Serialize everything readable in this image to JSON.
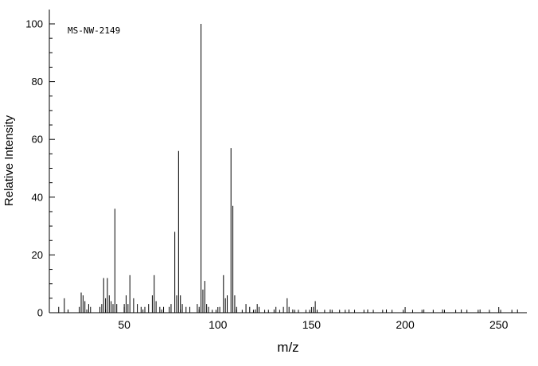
{
  "chart_data": {
    "type": "bar",
    "subtype": "mass-spectrum-stick-plot",
    "spectrum_id": "MS-NW-2149",
    "xlabel": "m/z",
    "ylabel": "Relative Intensity",
    "xlim": [
      10,
      265
    ],
    "ylim": [
      0,
      100
    ],
    "x_ticks_major": [
      50,
      100,
      150,
      200,
      250
    ],
    "y_ticks_major": [
      0,
      20,
      40,
      60,
      80,
      100
    ],
    "x_minor_step": 10,
    "y_minor_step": 5,
    "y_major_step": 20,
    "grid": false,
    "legend": "none",
    "line_color": "#000000",
    "background_color": "#ffffff",
    "peaks": [
      [
        15,
        2
      ],
      [
        18,
        5
      ],
      [
        26,
        2
      ],
      [
        27,
        7
      ],
      [
        28,
        6
      ],
      [
        29,
        4
      ],
      [
        31,
        3
      ],
      [
        32,
        2
      ],
      [
        37,
        2
      ],
      [
        38,
        3
      ],
      [
        39,
        12
      ],
      [
        40,
        5
      ],
      [
        41,
        12
      ],
      [
        42,
        6
      ],
      [
        43,
        4
      ],
      [
        44,
        3
      ],
      [
        45,
        36
      ],
      [
        46,
        3
      ],
      [
        50,
        3
      ],
      [
        51,
        6
      ],
      [
        52,
        3
      ],
      [
        53,
        13
      ],
      [
        55,
        5
      ],
      [
        57,
        3
      ],
      [
        59,
        2
      ],
      [
        61,
        2
      ],
      [
        63,
        3
      ],
      [
        65,
        6
      ],
      [
        66,
        13
      ],
      [
        67,
        4
      ],
      [
        69,
        2
      ],
      [
        71,
        2
      ],
      [
        74,
        2
      ],
      [
        75,
        3
      ],
      [
        77,
        28
      ],
      [
        78,
        6
      ],
      [
        79,
        56
      ],
      [
        80,
        6
      ],
      [
        81,
        3
      ],
      [
        83,
        2
      ],
      [
        85,
        2
      ],
      [
        89,
        3
      ],
      [
        90,
        2
      ],
      [
        91,
        100
      ],
      [
        92,
        8
      ],
      [
        93,
        11
      ],
      [
        94,
        3
      ],
      [
        95,
        2
      ],
      [
        97,
        1
      ],
      [
        99,
        1
      ],
      [
        101,
        2
      ],
      [
        103,
        13
      ],
      [
        104,
        5
      ],
      [
        105,
        6
      ],
      [
        107,
        57
      ],
      [
        108,
        37
      ],
      [
        109,
        6
      ],
      [
        110,
        2
      ],
      [
        113,
        1
      ],
      [
        115,
        3
      ],
      [
        117,
        2
      ],
      [
        119,
        1
      ],
      [
        121,
        3
      ],
      [
        122,
        2
      ],
      [
        125,
        1
      ],
      [
        127,
        1
      ],
      [
        131,
        2
      ],
      [
        133,
        1
      ],
      [
        135,
        2
      ],
      [
        137,
        5
      ],
      [
        138,
        2
      ],
      [
        141,
        1
      ],
      [
        143,
        1
      ],
      [
        147,
        1
      ],
      [
        149,
        1
      ],
      [
        151,
        2
      ],
      [
        152,
        4
      ],
      [
        153,
        1
      ],
      [
        157,
        1
      ],
      [
        161,
        1
      ],
      [
        165,
        1
      ],
      [
        168,
        1
      ],
      [
        173,
        1
      ],
      [
        178,
        1
      ],
      [
        183,
        1
      ],
      [
        188,
        1
      ],
      [
        193,
        1
      ],
      [
        199,
        1
      ],
      [
        204,
        1
      ],
      [
        209,
        1
      ],
      [
        215,
        1
      ],
      [
        221,
        1
      ],
      [
        227,
        1
      ],
      [
        233,
        1
      ],
      [
        239,
        1
      ],
      [
        245,
        1
      ],
      [
        251,
        1
      ],
      [
        257,
        1
      ]
    ]
  }
}
